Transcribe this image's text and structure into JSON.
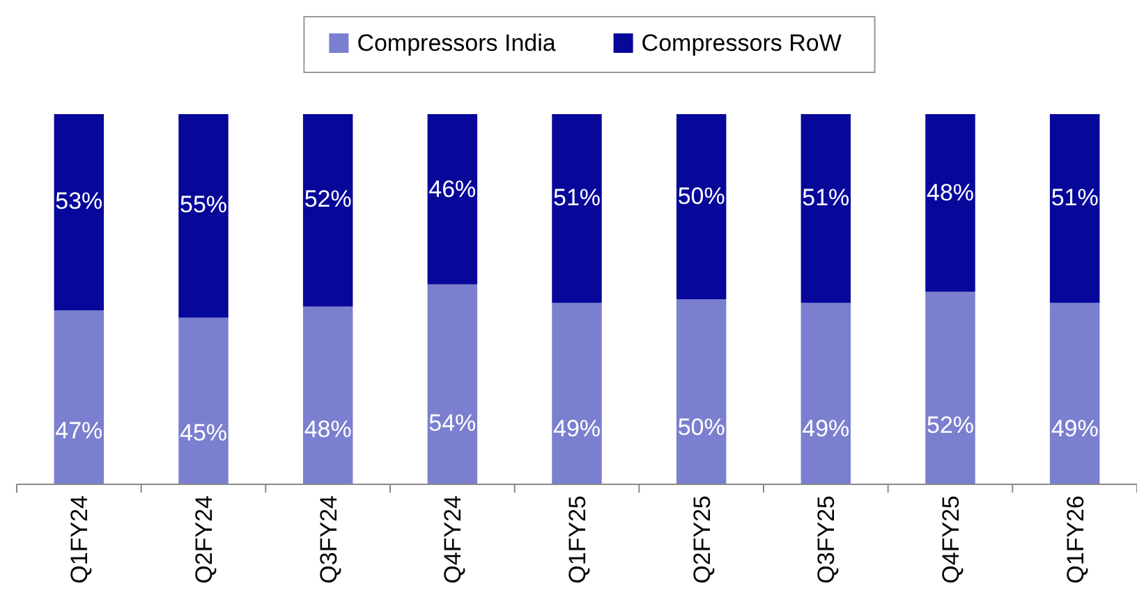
{
  "chart_data": {
    "type": "bar",
    "stacked": true,
    "legend": "top",
    "ylim": [
      0,
      100
    ],
    "categories": [
      "Q1FY24",
      "Q2FY24",
      "Q3FY24",
      "Q4FY24",
      "Q1FY25",
      "Q2FY25",
      "Q3FY25",
      "Q4FY25",
      "Q1FY26"
    ],
    "series": [
      {
        "name": "Compressors India",
        "color": "#7b7fcf",
        "values": [
          47,
          45,
          48,
          54,
          49,
          50,
          49,
          52,
          49
        ],
        "value_labels": [
          "47%",
          "45%",
          "48%",
          "54%",
          "49%",
          "50%",
          "49%",
          "52%",
          "49%"
        ]
      },
      {
        "name": "Compressors RoW",
        "color": "#07079a",
        "values": [
          53,
          55,
          52,
          46,
          51,
          50,
          51,
          48,
          51
        ],
        "value_labels": [
          "53%",
          "55%",
          "52%",
          "46%",
          "51%",
          "50%",
          "51%",
          "48%",
          "51%"
        ]
      }
    ]
  }
}
